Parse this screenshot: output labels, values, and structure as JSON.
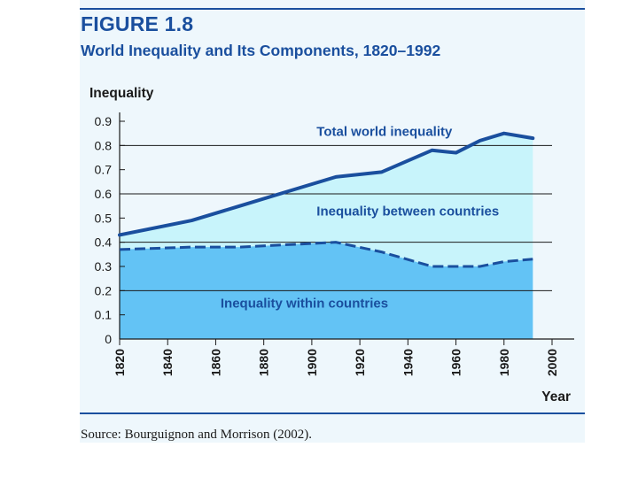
{
  "figure": {
    "label": "FIGURE 1.8",
    "title": "World Inequality and Its Components, 1820–1992",
    "source": "Source: Bourguignon and Morrison (2002)."
  },
  "colors": {
    "accent": "#1a4f9e",
    "panel_bg": "#eef7fc",
    "between_fill": "#c8f4fb",
    "within_fill": "#63c3f5",
    "line": "#1a4f9e"
  },
  "chart_data": {
    "type": "area",
    "ylabel": "Inequality",
    "xlabel": "Year",
    "xlim": [
      1820,
      2000
    ],
    "ylim": [
      0,
      0.9
    ],
    "x_ticks": [
      "1820",
      "1840",
      "1860",
      "1880",
      "1900",
      "1920",
      "1940",
      "1960",
      "1980",
      "2000"
    ],
    "y_ticks": [
      "0",
      "0.1",
      "0.2",
      "0.3",
      "0.4",
      "0.5",
      "0.6",
      "0.7",
      "0.8",
      "0.9"
    ],
    "gridlines_at": [
      0.2,
      0.4,
      0.6,
      0.8
    ],
    "x": [
      1820,
      1850,
      1870,
      1890,
      1910,
      1929,
      1950,
      1960,
      1970,
      1980,
      1992
    ],
    "series": [
      {
        "name": "Total world inequality",
        "style": "solid",
        "values": [
          0.43,
          0.49,
          0.55,
          0.61,
          0.67,
          0.69,
          0.78,
          0.77,
          0.82,
          0.85,
          0.83
        ]
      },
      {
        "name": "Inequality within countries",
        "style": "dashed",
        "values": [
          0.37,
          0.38,
          0.38,
          0.39,
          0.4,
          0.36,
          0.3,
          0.3,
          0.3,
          0.32,
          0.33
        ]
      }
    ],
    "annotations": [
      {
        "text": "Total world inequality",
        "x": 1902,
        "y": 0.84
      },
      {
        "text": "Inequality between countries",
        "x": 1902,
        "y": 0.51
      },
      {
        "text": "Inequality within countries",
        "x": 1862,
        "y": 0.13
      }
    ]
  }
}
